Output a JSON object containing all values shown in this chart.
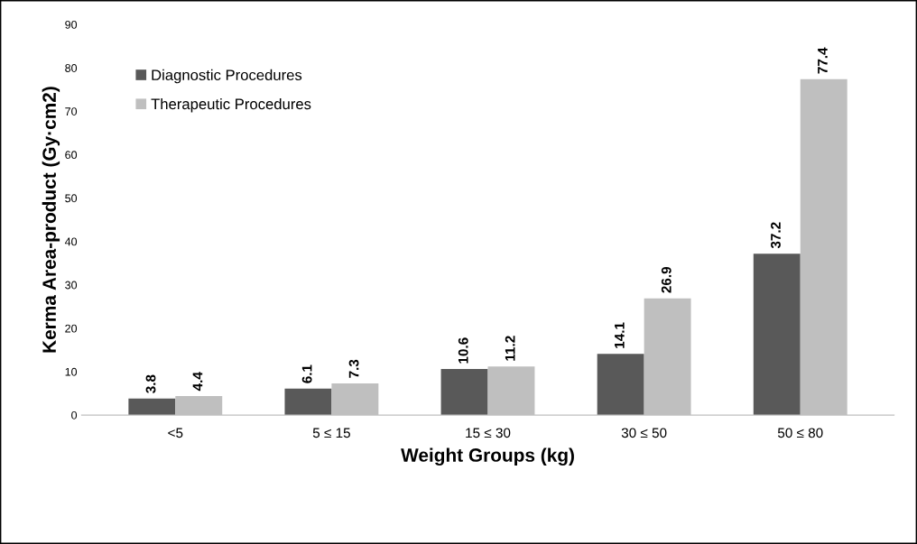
{
  "chart_data": {
    "type": "bar",
    "xlabel": "Weight Groups (kg)",
    "ylabel": "Kerma Area-product (Gy·cm2)",
    "categories": [
      "<5",
      "5 ≤ 15",
      "15 ≤ 30",
      "30 ≤ 50",
      "50 ≤ 80"
    ],
    "series": [
      {
        "name": "Diagnostic Procedures",
        "color": "#595959",
        "values": [
          3.8,
          6.1,
          10.6,
          14.1,
          37.2
        ]
      },
      {
        "name": "Therapeutic Procedures",
        "color": "#bfbfbf",
        "values": [
          4.4,
          7.3,
          11.2,
          26.9,
          77.4
        ]
      }
    ],
    "ylim": [
      0,
      90
    ],
    "yticks": [
      0,
      10,
      20,
      30,
      40,
      50,
      60,
      70,
      80,
      90
    ],
    "grid": false,
    "legend": "top left",
    "data_labels": true
  }
}
